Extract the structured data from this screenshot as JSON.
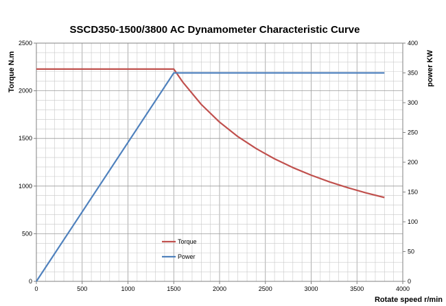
{
  "chart_data": {
    "type": "line",
    "title": "SSCD350-1500/3800 AC Dynamometer Characteristic Curve",
    "xlabel": "Rotate speed r/min",
    "ylabel": "Torque N.m",
    "y2label": "power KW",
    "xlim": [
      0,
      4000
    ],
    "ylim": [
      0,
      2500
    ],
    "y2lim": [
      0,
      400
    ],
    "x_ticks": [
      0,
      500,
      1000,
      1500,
      2000,
      2500,
      3000,
      3500,
      4000
    ],
    "y_ticks": [
      0,
      500,
      1000,
      1500,
      2000,
      2500
    ],
    "y2_ticks": [
      0,
      50,
      100,
      150,
      200,
      250,
      300,
      350,
      400
    ],
    "grid": true,
    "legend_position": "bottom-center",
    "series": [
      {
        "name": "Torque",
        "axis": "left",
        "color": "#c0504d",
        "x": [
          0,
          1500,
          1600,
          1800,
          2000,
          2200,
          2400,
          2600,
          2800,
          3000,
          3200,
          3400,
          3600,
          3800
        ],
        "values": [
          2228,
          2228,
          2089,
          1857,
          1671,
          1519,
          1393,
          1286,
          1194,
          1114,
          1044,
          983,
          928,
          880
        ]
      },
      {
        "name": "Power",
        "axis": "right",
        "color": "#4f81bd",
        "x": [
          0,
          1500,
          3800
        ],
        "values": [
          0,
          350,
          350
        ]
      }
    ]
  }
}
